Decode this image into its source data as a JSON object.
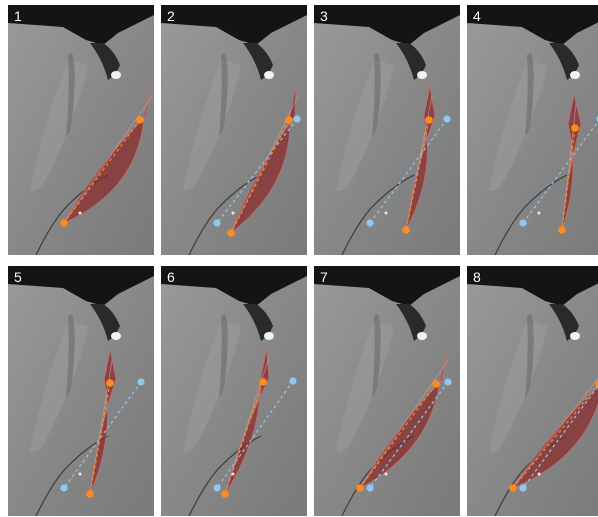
{
  "panels": [
    {
      "label": "1",
      "wing_spread": 1.0
    },
    {
      "label": "2",
      "wing_spread": 0.8
    },
    {
      "label": "3",
      "wing_spread": 0.35
    },
    {
      "label": "4",
      "wing_spread": 0.15
    },
    {
      "label": "5",
      "wing_spread": 0.25
    },
    {
      "label": "6",
      "wing_spread": 0.3
    },
    {
      "label": "7",
      "wing_spread": 0.85
    },
    {
      "label": "8",
      "wing_spread": 1.0
    }
  ],
  "colors": {
    "background": "#8a8a8a",
    "wing_fill": "#8b2a2a",
    "wing_stroke": "#c07070",
    "marker_orange": "#ff8c1a",
    "marker_blue": "#8ec8f0",
    "holder": "#141414"
  }
}
